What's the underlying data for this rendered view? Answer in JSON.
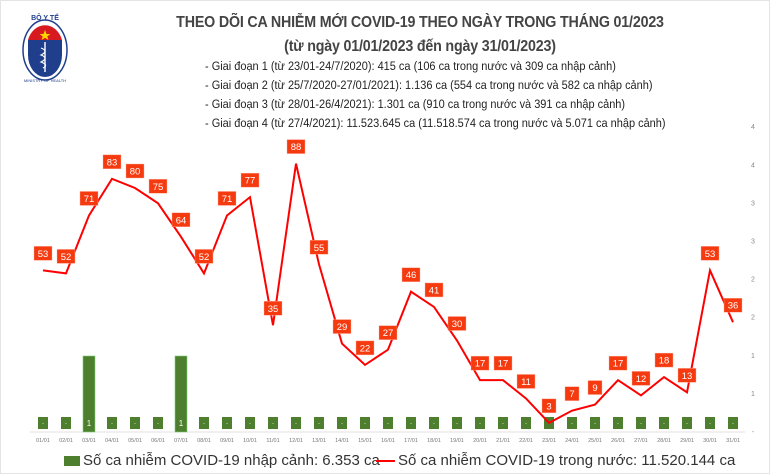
{
  "header": {
    "logo_text_top": "BỘ Y TẾ",
    "logo_text_bottom": "MINISTRY OF HEALTH",
    "title": "THEO DÕI CA NHIỄM MỚI COVID-19 THEO NGÀY TRONG THÁNG 01/2023",
    "subtitle": "(từ ngày 01/01/2023 đến ngày 31/01/2023)",
    "phases": [
      "- Giai đoạn 1 (từ 23/01-24/7/2020): 415 ca (106 ca trong nước và 309 ca nhập cảnh)",
      "- Giai đoạn 2 (từ 25/7/2020-27/01/2021): 1.136 ca (554 ca trong nước và 582 ca nhập cảnh)",
      "- Giai đoạn 3 (từ 28/01-26/4/2021): 1.301 ca (910 ca trong nước và 391 ca nhập cảnh)",
      "- Giai đoạn 4 (từ 27/4/2021): 11.523.645 ca (11.518.574 ca trong nước và 5.071 ca nhập cảnh)"
    ]
  },
  "chart_data": {
    "type": "bar+line",
    "categories": [
      "01/01",
      "02/01",
      "03/01",
      "04/01",
      "05/01",
      "06/01",
      "07/01",
      "08/01",
      "09/01",
      "10/01",
      "11/01",
      "12/01",
      "13/01",
      "14/01",
      "15/01",
      "16/01",
      "17/01",
      "18/01",
      "19/01",
      "20/01",
      "21/01",
      "22/01",
      "23/01",
      "24/01",
      "25/01",
      "26/01",
      "27/01",
      "28/01",
      "29/01",
      "30/01",
      "31/01"
    ],
    "series": [
      {
        "name": "Số ca nhiễm COVID-19 nhập cảnh: 6.353 ca",
        "type": "bar",
        "axis": "right",
        "color": "#4e7f2e",
        "values": [
          0,
          0,
          1,
          0,
          0,
          0,
          1,
          0,
          0,
          0,
          0,
          0,
          0,
          0,
          0,
          0,
          0,
          0,
          0,
          0,
          0,
          0,
          0,
          0,
          0,
          0,
          0,
          0,
          0,
          0,
          0
        ]
      },
      {
        "name": "Số ca nhiễm COVID-19 trong nước: 11.520.144 ca",
        "type": "line",
        "axis": "left",
        "color": "#ff0000",
        "label_color": "#f53a0f",
        "values": [
          53,
          52,
          71,
          83,
          80,
          75,
          64,
          52,
          71,
          77,
          35,
          88,
          55,
          29,
          22,
          27,
          46,
          41,
          30,
          17,
          17,
          11,
          3,
          7,
          9,
          17,
          12,
          18,
          13,
          53,
          36
        ]
      }
    ],
    "right_axis_ticks": [
      "-",
      "1",
      "1",
      "2",
      "2",
      "3",
      "3",
      "4",
      "4"
    ],
    "right_axis_range": [
      0,
      4
    ],
    "zero_label": "-",
    "grid": false,
    "legend": "bottom"
  }
}
